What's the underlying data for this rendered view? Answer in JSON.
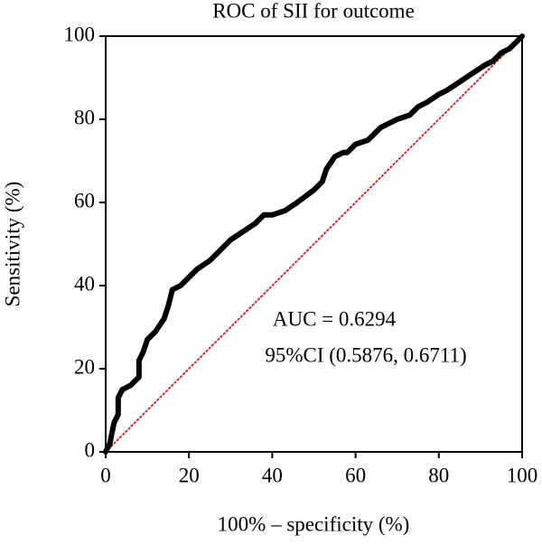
{
  "chart_data": {
    "type": "line",
    "title": "ROC of SII for outcome",
    "xlabel": "100% – specificity (%)",
    "ylabel": "Sensitivity (%)",
    "annotations": [
      "AUC = 0.6294",
      "95%CI (0.5876, 0.6711)"
    ],
    "xlim": [
      0,
      100
    ],
    "ylim": [
      0,
      100
    ],
    "xticks": [
      0,
      20,
      40,
      60,
      80,
      100
    ],
    "yticks": [
      0,
      20,
      40,
      60,
      80,
      100
    ],
    "series": [
      {
        "color": "#000000",
        "style": "solid",
        "x": [
          0,
          1,
          2,
          3,
          3,
          4,
          6,
          7,
          8,
          8,
          9,
          10,
          12,
          14,
          15,
          16,
          18,
          20,
          22,
          25,
          27,
          30,
          33,
          36,
          38,
          40,
          43,
          46,
          50,
          52,
          53,
          55,
          57,
          58,
          60,
          63,
          66,
          70,
          73,
          75,
          77,
          80,
          82,
          85,
          88,
          91,
          93,
          95,
          97,
          99,
          100
        ],
        "values": [
          0,
          2,
          7,
          9,
          13,
          15,
          16,
          17,
          18,
          22,
          24,
          27,
          29,
          32,
          35,
          39,
          40,
          42,
          44,
          46,
          48,
          51,
          53,
          55,
          57,
          57,
          58,
          60,
          63,
          65,
          68,
          71,
          72,
          72,
          74,
          75,
          78,
          80,
          81,
          83,
          84,
          86,
          87,
          89,
          91,
          93,
          94,
          96,
          97,
          99,
          100
        ]
      },
      {
        "color": "#d62728",
        "style": "dotted",
        "x": [
          0,
          100
        ],
        "values": [
          0,
          100
        ]
      }
    ]
  }
}
